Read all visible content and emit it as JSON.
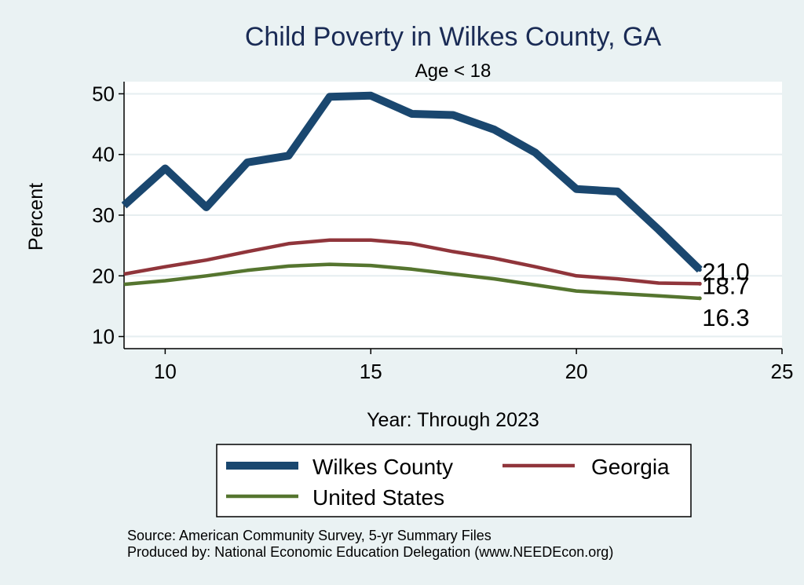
{
  "chart_data": {
    "type": "line",
    "title": "Child Poverty in Wilkes County, GA",
    "subtitle": "Age < 18",
    "xlabel": "Year: Through 2023",
    "ylabel": "Percent",
    "xlim": [
      9,
      25
    ],
    "ylim": [
      8,
      52
    ],
    "xticks": [
      10,
      15,
      20,
      25
    ],
    "yticks": [
      10,
      20,
      30,
      40,
      50
    ],
    "x": [
      9,
      10,
      11,
      12,
      13,
      14,
      15,
      16,
      17,
      18,
      19,
      20,
      21,
      22,
      23
    ],
    "series": [
      {
        "name": "Wilkes County",
        "color": "#1a476f",
        "values": [
          31.6,
          37.7,
          31.3,
          38.7,
          39.8,
          49.5,
          49.7,
          46.7,
          46.5,
          44.1,
          40.3,
          34.3,
          33.9,
          27.6,
          21.0
        ],
        "end_label": "21.0"
      },
      {
        "name": "Georgia",
        "color": "#90353b",
        "values": [
          20.3,
          21.5,
          22.6,
          24.0,
          25.3,
          25.9,
          25.9,
          25.3,
          24.0,
          22.9,
          21.5,
          20.0,
          19.5,
          18.8,
          18.7
        ],
        "end_label": "18.7"
      },
      {
        "name": "United States",
        "color": "#55752f",
        "values": [
          18.6,
          19.2,
          20.0,
          20.9,
          21.6,
          21.9,
          21.7,
          21.1,
          20.3,
          19.5,
          18.5,
          17.5,
          17.1,
          16.7,
          16.3
        ],
        "end_label": "16.3"
      }
    ],
    "grid": true,
    "legend": {
      "placement": "bottom",
      "entries": [
        "Wilkes County",
        "Georgia",
        "United States"
      ]
    },
    "notes": [
      "Source: American Community Survey, 5-yr Summary Files",
      "Produced by: National Economic Education Delegation (www.NEEDEcon.org)"
    ]
  }
}
